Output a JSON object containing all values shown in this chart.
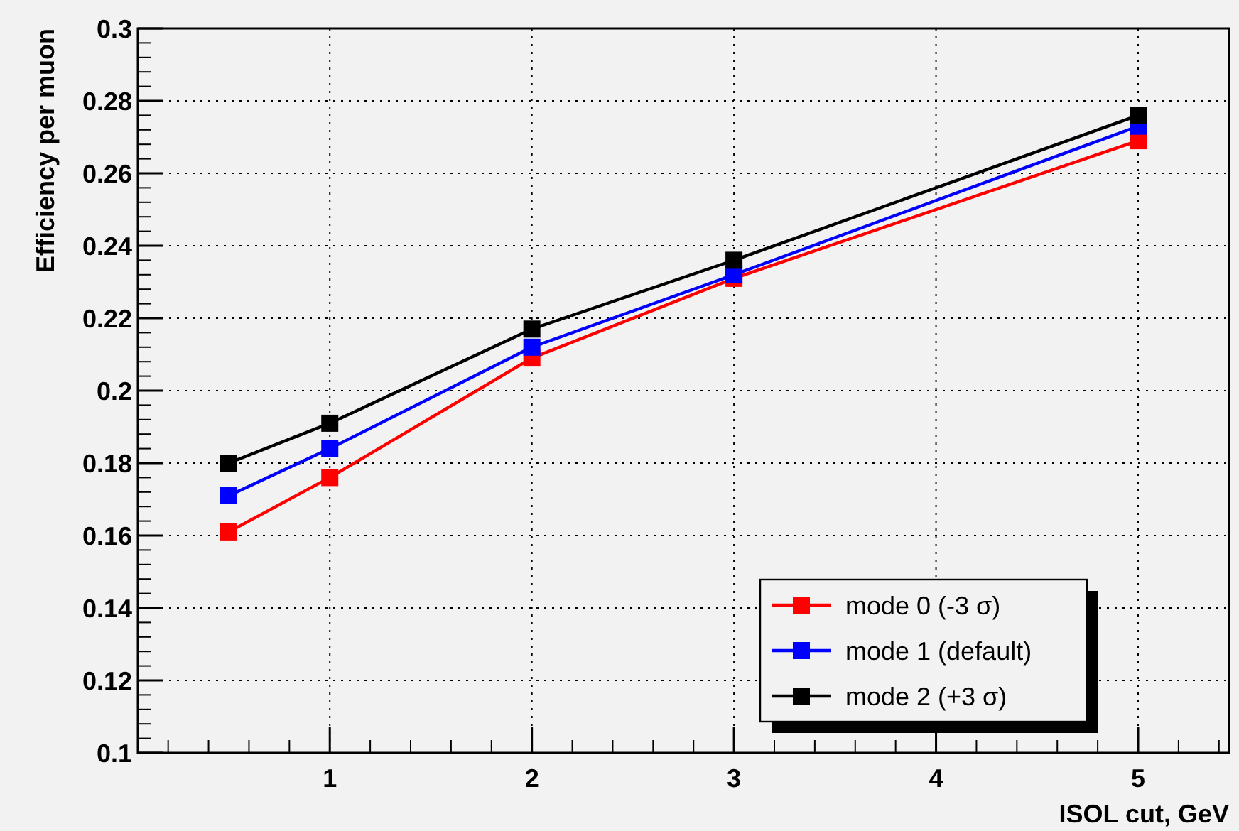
{
  "chart_data": {
    "type": "line",
    "xlabel": "ISOL cut, GeV",
    "ylabel": "Efficiency per muon",
    "x": [
      0.5,
      1,
      2,
      3,
      5
    ],
    "series": [
      {
        "name": "mode 0 (-3 σ)",
        "color": "#ff0000",
        "values": [
          0.161,
          0.176,
          0.209,
          0.231,
          0.269
        ]
      },
      {
        "name": "mode 1 (default)",
        "color": "#0000ff",
        "values": [
          0.171,
          0.184,
          0.212,
          0.232,
          0.273
        ]
      },
      {
        "name": "mode 2 (+3 σ)",
        "color": "#000000",
        "values": [
          0.18,
          0.191,
          0.217,
          0.236,
          0.276
        ]
      }
    ],
    "xlim": [
      0.05,
      5.45
    ],
    "xticks": [
      1,
      2,
      3,
      4,
      5
    ],
    "ylim": [
      0.1,
      0.3
    ],
    "yticks": [
      0.1,
      0.12,
      0.14,
      0.16,
      0.18,
      0.2,
      0.22,
      0.24,
      0.26,
      0.28,
      0.3
    ],
    "grid": true,
    "legend": "bottom right",
    "marker": "square",
    "line_style": "solid"
  }
}
